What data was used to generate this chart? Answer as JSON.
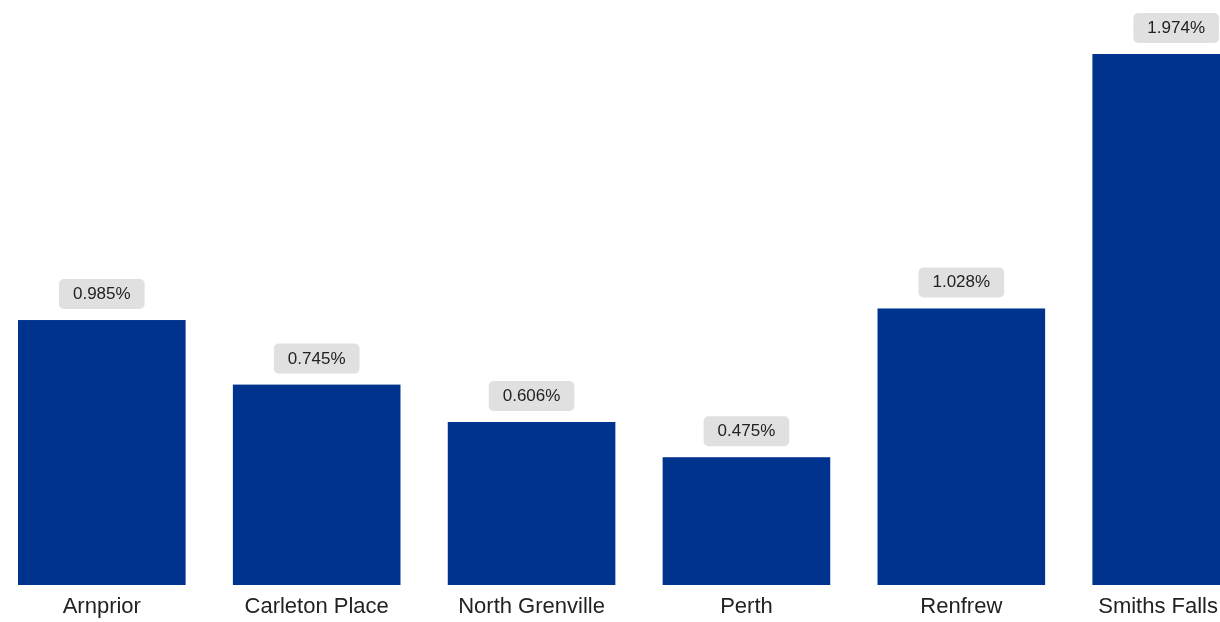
{
  "chart_data": {
    "type": "bar",
    "categories": [
      "Arnprior",
      "Carleton Place",
      "North Grenville",
      "Perth",
      "Renfrew",
      "Smiths Falls"
    ],
    "values": [
      0.985,
      0.745,
      0.606,
      0.475,
      1.028,
      1.974
    ],
    "value_labels": [
      "0.985%",
      "0.745%",
      "0.606%",
      "0.475%",
      "1.028%",
      "1.974%"
    ],
    "color": "#00338d",
    "grid": false
  }
}
